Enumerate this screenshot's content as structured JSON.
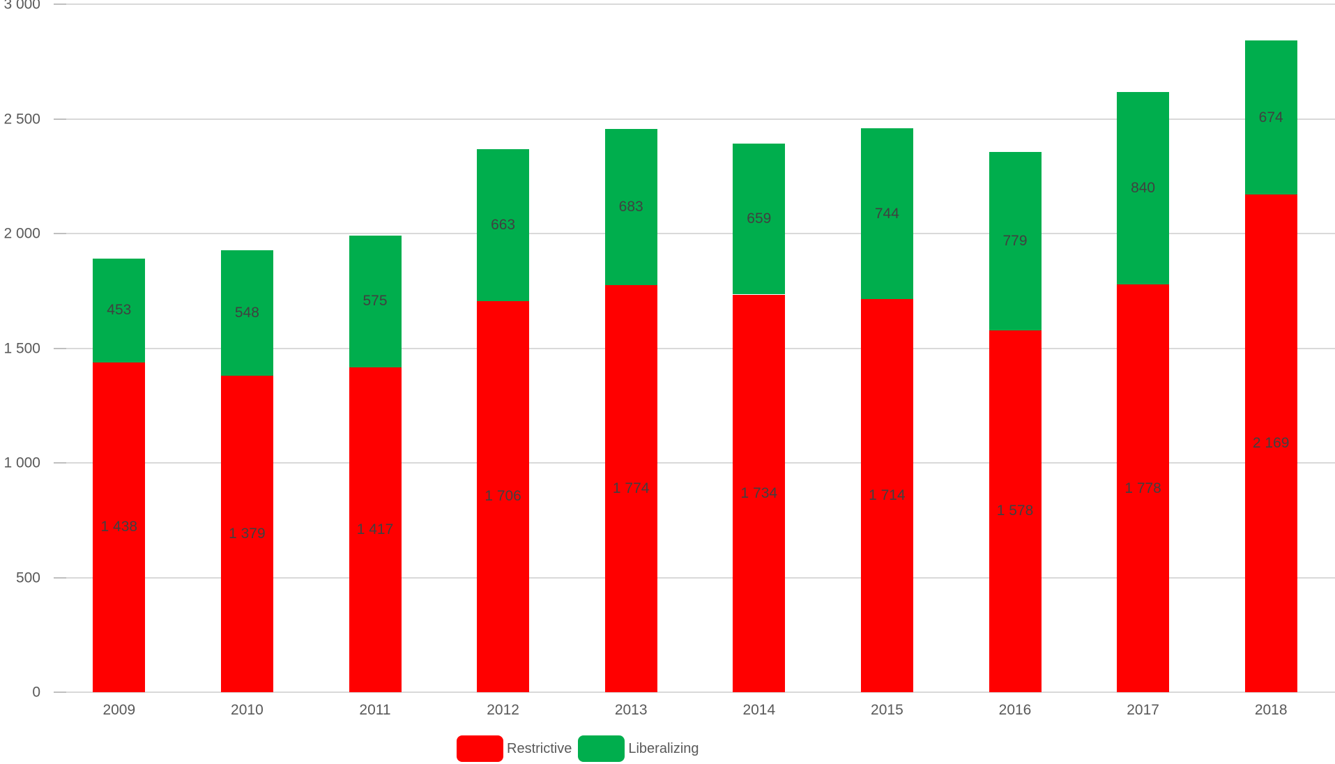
{
  "chart_data": {
    "type": "bar",
    "stacked": true,
    "categories": [
      "2009",
      "2010",
      "2011",
      "2012",
      "2013",
      "2014",
      "2015",
      "2016",
      "2017",
      "2018"
    ],
    "series": [
      {
        "name": "Restrictive",
        "color": "#FF0000",
        "values": [
          1438,
          1379,
          1417,
          1706,
          1774,
          1734,
          1714,
          1578,
          1778,
          2169
        ],
        "labels": [
          "1 438",
          "1 379",
          "1 417",
          "1 706",
          "1 774",
          "1 734",
          "1 714",
          "1 578",
          "1 778",
          "2 169"
        ]
      },
      {
        "name": "Liberalizing",
        "color": "#00AE4D",
        "values": [
          453,
          548,
          575,
          663,
          683,
          659,
          744,
          779,
          840,
          674
        ],
        "labels": [
          "453",
          "548",
          "575",
          "663",
          "683",
          "659",
          "744",
          "779",
          "840",
          "674"
        ]
      }
    ],
    "ylim": [
      0,
      3000
    ],
    "ytick_step": 500,
    "yticks": [
      {
        "value": 0,
        "label": "0"
      },
      {
        "value": 500,
        "label": "500"
      },
      {
        "value": 1000,
        "label": "1 000"
      },
      {
        "value": 1500,
        "label": "1 500"
      },
      {
        "value": 2000,
        "label": "2 000"
      },
      {
        "value": 2500,
        "label": "2 500"
      },
      {
        "value": 3000,
        "label": "3 000"
      }
    ],
    "grid": true,
    "legend_position": "bottom"
  },
  "colors": {
    "background": "#FFFFFF",
    "gridline": "#D9D9D9",
    "tick": "#BFBFBF",
    "axis_text": "#595959",
    "bar_label": "#404040"
  }
}
